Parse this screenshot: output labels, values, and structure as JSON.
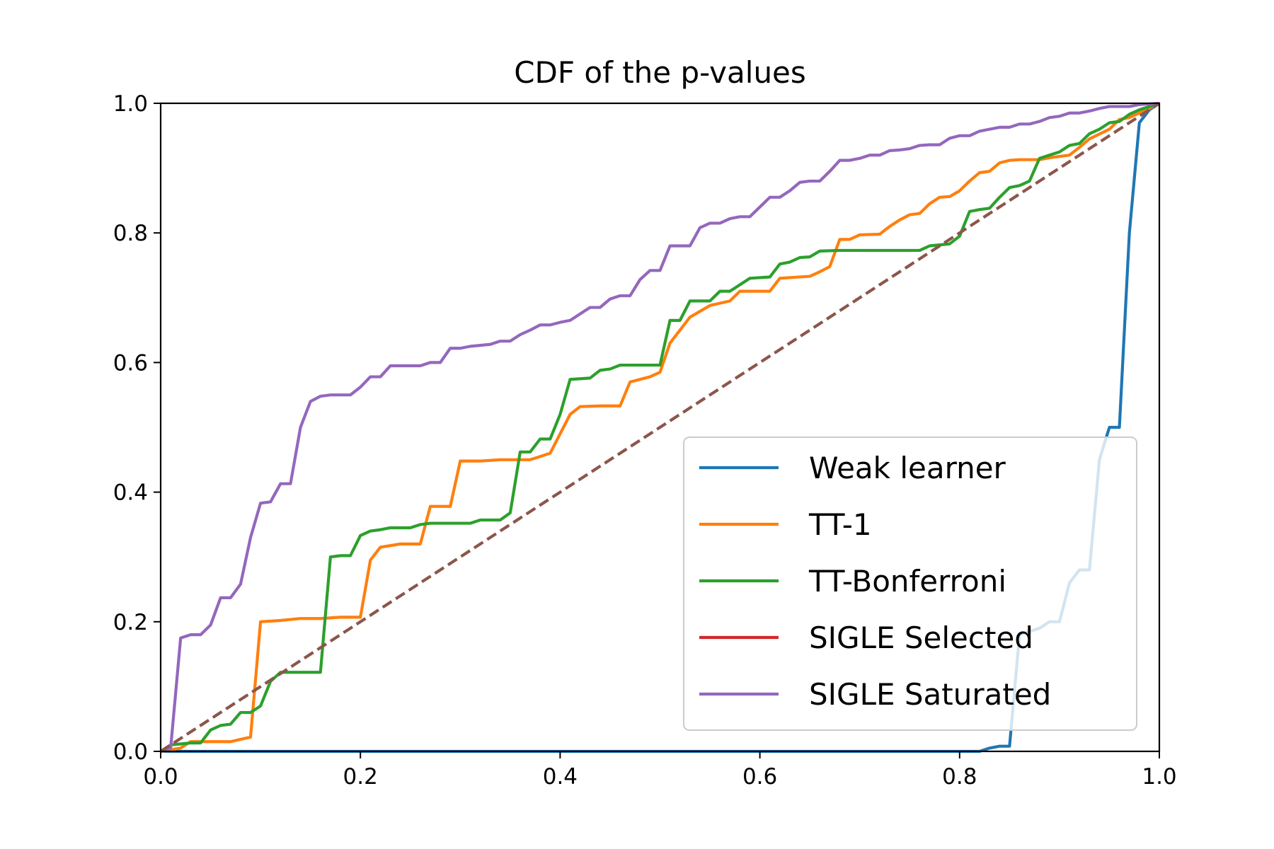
{
  "chart_data": {
    "type": "line",
    "title": "CDF of the p-values",
    "xlabel": "",
    "ylabel": "",
    "xlim": [
      0.0,
      1.0
    ],
    "ylim": [
      0.0,
      1.0
    ],
    "xticks": [
      "0.0",
      "0.2",
      "0.4",
      "0.6",
      "0.8",
      "1.0"
    ],
    "yticks": [
      "0.0",
      "0.2",
      "0.4",
      "0.6",
      "0.8",
      "1.0"
    ],
    "grid": false,
    "legend_position": "lower right",
    "series": [
      {
        "name": "Weak learner",
        "color": "#1f77b4",
        "dashed": false,
        "points": [
          [
            0.0,
            0.0
          ],
          [
            0.82,
            0.0
          ],
          [
            0.83,
            0.005
          ],
          [
            0.84,
            0.008
          ],
          [
            0.85,
            0.008
          ],
          [
            0.86,
            0.18
          ],
          [
            0.87,
            0.185
          ],
          [
            0.88,
            0.19
          ],
          [
            0.89,
            0.2
          ],
          [
            0.9,
            0.2
          ],
          [
            0.91,
            0.26
          ],
          [
            0.92,
            0.28
          ],
          [
            0.93,
            0.28
          ],
          [
            0.94,
            0.45
          ],
          [
            0.95,
            0.5
          ],
          [
            0.96,
            0.5
          ],
          [
            0.97,
            0.8
          ],
          [
            0.98,
            0.97
          ],
          [
            0.99,
            0.99
          ],
          [
            1.0,
            1.0
          ]
        ]
      },
      {
        "name": "TT-1",
        "color": "#ff7f0e",
        "dashed": false,
        "points": [
          [
            0.0,
            0.0
          ],
          [
            0.02,
            0.005
          ],
          [
            0.03,
            0.015
          ],
          [
            0.07,
            0.015
          ],
          [
            0.09,
            0.022
          ],
          [
            0.1,
            0.2
          ],
          [
            0.12,
            0.202
          ],
          [
            0.14,
            0.205
          ],
          [
            0.16,
            0.205
          ],
          [
            0.18,
            0.207
          ],
          [
            0.2,
            0.207
          ],
          [
            0.21,
            0.295
          ],
          [
            0.22,
            0.315
          ],
          [
            0.24,
            0.32
          ],
          [
            0.26,
            0.32
          ],
          [
            0.27,
            0.378
          ],
          [
            0.29,
            0.378
          ],
          [
            0.3,
            0.448
          ],
          [
            0.32,
            0.448
          ],
          [
            0.34,
            0.45
          ],
          [
            0.37,
            0.45
          ],
          [
            0.39,
            0.46
          ],
          [
            0.41,
            0.52
          ],
          [
            0.42,
            0.532
          ],
          [
            0.44,
            0.533
          ],
          [
            0.46,
            0.533
          ],
          [
            0.47,
            0.57
          ],
          [
            0.49,
            0.578
          ],
          [
            0.5,
            0.585
          ],
          [
            0.51,
            0.63
          ],
          [
            0.53,
            0.67
          ],
          [
            0.55,
            0.688
          ],
          [
            0.57,
            0.695
          ],
          [
            0.58,
            0.71
          ],
          [
            0.6,
            0.71
          ],
          [
            0.61,
            0.71
          ],
          [
            0.62,
            0.73
          ],
          [
            0.65,
            0.733
          ],
          [
            0.66,
            0.74
          ],
          [
            0.67,
            0.748
          ],
          [
            0.68,
            0.79
          ],
          [
            0.69,
            0.79
          ],
          [
            0.7,
            0.797
          ],
          [
            0.72,
            0.798
          ],
          [
            0.73,
            0.81
          ],
          [
            0.74,
            0.82
          ],
          [
            0.75,
            0.828
          ],
          [
            0.76,
            0.83
          ],
          [
            0.77,
            0.845
          ],
          [
            0.78,
            0.855
          ],
          [
            0.79,
            0.856
          ],
          [
            0.8,
            0.865
          ],
          [
            0.81,
            0.88
          ],
          [
            0.82,
            0.893
          ],
          [
            0.83,
            0.895
          ],
          [
            0.84,
            0.908
          ],
          [
            0.85,
            0.912
          ],
          [
            0.86,
            0.913
          ],
          [
            0.87,
            0.913
          ],
          [
            0.88,
            0.913
          ],
          [
            0.89,
            0.916
          ],
          [
            0.9,
            0.918
          ],
          [
            0.91,
            0.92
          ],
          [
            0.92,
            0.932
          ],
          [
            0.93,
            0.945
          ],
          [
            0.95,
            0.96
          ],
          [
            0.96,
            0.975
          ],
          [
            0.97,
            0.978
          ],
          [
            0.98,
            0.985
          ],
          [
            1.0,
            1.0
          ]
        ]
      },
      {
        "name": "TT-Bonferroni",
        "color": "#2ca02c",
        "dashed": false,
        "points": [
          [
            0.0,
            0.0
          ],
          [
            0.01,
            0.01
          ],
          [
            0.03,
            0.013
          ],
          [
            0.04,
            0.013
          ],
          [
            0.05,
            0.033
          ],
          [
            0.06,
            0.04
          ],
          [
            0.07,
            0.042
          ],
          [
            0.08,
            0.06
          ],
          [
            0.09,
            0.06
          ],
          [
            0.1,
            0.07
          ],
          [
            0.11,
            0.108
          ],
          [
            0.12,
            0.122
          ],
          [
            0.14,
            0.122
          ],
          [
            0.16,
            0.122
          ],
          [
            0.17,
            0.3
          ],
          [
            0.18,
            0.302
          ],
          [
            0.19,
            0.302
          ],
          [
            0.2,
            0.333
          ],
          [
            0.21,
            0.34
          ],
          [
            0.22,
            0.342
          ],
          [
            0.23,
            0.345
          ],
          [
            0.25,
            0.345
          ],
          [
            0.26,
            0.35
          ],
          [
            0.27,
            0.352
          ],
          [
            0.31,
            0.352
          ],
          [
            0.32,
            0.357
          ],
          [
            0.34,
            0.357
          ],
          [
            0.35,
            0.368
          ],
          [
            0.36,
            0.462
          ],
          [
            0.37,
            0.462
          ],
          [
            0.38,
            0.482
          ],
          [
            0.39,
            0.482
          ],
          [
            0.4,
            0.52
          ],
          [
            0.41,
            0.574
          ],
          [
            0.43,
            0.576
          ],
          [
            0.44,
            0.588
          ],
          [
            0.45,
            0.59
          ],
          [
            0.46,
            0.596
          ],
          [
            0.5,
            0.596
          ],
          [
            0.51,
            0.665
          ],
          [
            0.52,
            0.665
          ],
          [
            0.53,
            0.695
          ],
          [
            0.55,
            0.695
          ],
          [
            0.56,
            0.71
          ],
          [
            0.57,
            0.71
          ],
          [
            0.58,
            0.72
          ],
          [
            0.59,
            0.73
          ],
          [
            0.61,
            0.732
          ],
          [
            0.62,
            0.752
          ],
          [
            0.63,
            0.755
          ],
          [
            0.64,
            0.762
          ],
          [
            0.65,
            0.763
          ],
          [
            0.66,
            0.772
          ],
          [
            0.68,
            0.773
          ],
          [
            0.76,
            0.773
          ],
          [
            0.77,
            0.78
          ],
          [
            0.79,
            0.783
          ],
          [
            0.8,
            0.795
          ],
          [
            0.81,
            0.833
          ],
          [
            0.82,
            0.836
          ],
          [
            0.83,
            0.838
          ],
          [
            0.84,
            0.855
          ],
          [
            0.85,
            0.87
          ],
          [
            0.86,
            0.873
          ],
          [
            0.87,
            0.88
          ],
          [
            0.88,
            0.915
          ],
          [
            0.89,
            0.92
          ],
          [
            0.9,
            0.925
          ],
          [
            0.91,
            0.935
          ],
          [
            0.92,
            0.938
          ],
          [
            0.93,
            0.953
          ],
          [
            0.94,
            0.96
          ],
          [
            0.95,
            0.97
          ],
          [
            0.96,
            0.972
          ],
          [
            0.97,
            0.983
          ],
          [
            0.98,
            0.99
          ],
          [
            1.0,
            1.0
          ]
        ]
      },
      {
        "name": "SIGLE Selected",
        "color": "#d62728",
        "dashed": false,
        "points": []
      },
      {
        "name": "SIGLE Saturated",
        "color": "#9467bd",
        "dashed": false,
        "points": [
          [
            0.0,
            0.0
          ],
          [
            0.01,
            0.005
          ],
          [
            0.02,
            0.175
          ],
          [
            0.03,
            0.18
          ],
          [
            0.04,
            0.18
          ],
          [
            0.05,
            0.195
          ],
          [
            0.06,
            0.237
          ],
          [
            0.07,
            0.237
          ],
          [
            0.08,
            0.258
          ],
          [
            0.09,
            0.33
          ],
          [
            0.1,
            0.383
          ],
          [
            0.11,
            0.385
          ],
          [
            0.12,
            0.413
          ],
          [
            0.13,
            0.413
          ],
          [
            0.14,
            0.5
          ],
          [
            0.15,
            0.54
          ],
          [
            0.16,
            0.548
          ],
          [
            0.17,
            0.55
          ],
          [
            0.19,
            0.55
          ],
          [
            0.2,
            0.562
          ],
          [
            0.21,
            0.578
          ],
          [
            0.22,
            0.578
          ],
          [
            0.23,
            0.595
          ],
          [
            0.26,
            0.595
          ],
          [
            0.27,
            0.6
          ],
          [
            0.28,
            0.6
          ],
          [
            0.29,
            0.622
          ],
          [
            0.3,
            0.622
          ],
          [
            0.31,
            0.625
          ],
          [
            0.33,
            0.628
          ],
          [
            0.34,
            0.633
          ],
          [
            0.35,
            0.633
          ],
          [
            0.36,
            0.643
          ],
          [
            0.37,
            0.65
          ],
          [
            0.38,
            0.658
          ],
          [
            0.39,
            0.658
          ],
          [
            0.4,
            0.662
          ],
          [
            0.41,
            0.665
          ],
          [
            0.43,
            0.685
          ],
          [
            0.44,
            0.685
          ],
          [
            0.45,
            0.698
          ],
          [
            0.46,
            0.703
          ],
          [
            0.47,
            0.703
          ],
          [
            0.48,
            0.728
          ],
          [
            0.49,
            0.742
          ],
          [
            0.5,
            0.742
          ],
          [
            0.51,
            0.78
          ],
          [
            0.52,
            0.78
          ],
          [
            0.53,
            0.78
          ],
          [
            0.54,
            0.808
          ],
          [
            0.55,
            0.815
          ],
          [
            0.56,
            0.815
          ],
          [
            0.57,
            0.822
          ],
          [
            0.58,
            0.825
          ],
          [
            0.59,
            0.825
          ],
          [
            0.6,
            0.84
          ],
          [
            0.61,
            0.855
          ],
          [
            0.62,
            0.855
          ],
          [
            0.63,
            0.865
          ],
          [
            0.64,
            0.878
          ],
          [
            0.65,
            0.88
          ],
          [
            0.66,
            0.88
          ],
          [
            0.67,
            0.895
          ],
          [
            0.68,
            0.912
          ],
          [
            0.69,
            0.912
          ],
          [
            0.7,
            0.915
          ],
          [
            0.71,
            0.92
          ],
          [
            0.72,
            0.92
          ],
          [
            0.73,
            0.927
          ],
          [
            0.74,
            0.928
          ],
          [
            0.75,
            0.93
          ],
          [
            0.76,
            0.935
          ],
          [
            0.77,
            0.936
          ],
          [
            0.78,
            0.936
          ],
          [
            0.79,
            0.946
          ],
          [
            0.8,
            0.95
          ],
          [
            0.81,
            0.95
          ],
          [
            0.82,
            0.957
          ],
          [
            0.83,
            0.96
          ],
          [
            0.84,
            0.963
          ],
          [
            0.85,
            0.963
          ],
          [
            0.86,
            0.968
          ],
          [
            0.87,
            0.968
          ],
          [
            0.88,
            0.972
          ],
          [
            0.89,
            0.978
          ],
          [
            0.9,
            0.98
          ],
          [
            0.91,
            0.985
          ],
          [
            0.92,
            0.985
          ],
          [
            0.93,
            0.988
          ],
          [
            0.94,
            0.992
          ],
          [
            0.95,
            0.995
          ],
          [
            0.97,
            0.995
          ],
          [
            0.98,
            0.998
          ],
          [
            1.0,
            1.0
          ]
        ]
      },
      {
        "name": "",
        "color": "#8c564b",
        "dashed": true,
        "points": [
          [
            0.0,
            0.0
          ],
          [
            1.0,
            1.0
          ]
        ]
      }
    ]
  }
}
